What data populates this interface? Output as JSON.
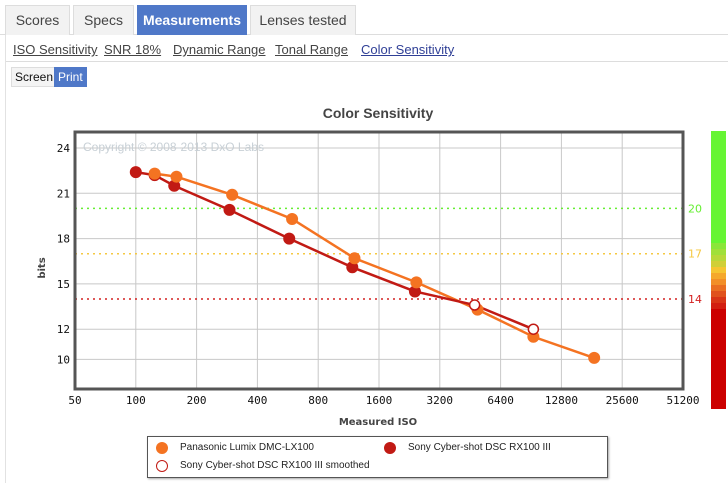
{
  "tabs": [
    {
      "label": "Scores",
      "active": false
    },
    {
      "label": "Specs",
      "active": false
    },
    {
      "label": "Measurements",
      "active": true
    },
    {
      "label": "Lenses tested",
      "active": false
    }
  ],
  "subnav": [
    {
      "label": "ISO Sensitivity",
      "active": false
    },
    {
      "label": "SNR 18%",
      "active": false
    },
    {
      "label": "Dynamic Range",
      "active": false
    },
    {
      "label": "Tonal Range",
      "active": false
    },
    {
      "label": "Color Sensitivity",
      "active": true
    }
  ],
  "view_toggle": {
    "screen": "Screen",
    "print": "Print",
    "selected": "Print"
  },
  "colors": {
    "panasonic": "#f47322",
    "sony": "#c11a14",
    "tab_active": "#4f78c8",
    "threshold_20": "#66ee33",
    "threshold_17": "#f5c842",
    "threshold_14": "#d42020"
  },
  "chart_data": {
    "type": "line",
    "title": "Color Sensitivity",
    "watermark": "Copyright © 2008-2013 DxO Labs",
    "xlabel": "Measured ISO",
    "ylabel": "bits",
    "x_scale": "log2",
    "x_ticks": [
      50,
      100,
      200,
      400,
      800,
      1600,
      3200,
      6400,
      12800,
      25600,
      51200
    ],
    "xlim": [
      50,
      51200
    ],
    "y_ticks": [
      24,
      21,
      18,
      15,
      12,
      10
    ],
    "ylim": [
      8,
      24.7
    ],
    "grid": true,
    "thresholds": [
      {
        "value": 20,
        "label": "20",
        "color": "#66ee33"
      },
      {
        "value": 17,
        "label": "17",
        "color": "#f5c842"
      },
      {
        "value": 14,
        "label": "14",
        "color": "#d42020"
      }
    ],
    "series": [
      {
        "name": "Panasonic Lumix DMC-LX100",
        "color": "#f47322",
        "marker": "filled",
        "x": [
          124,
          159,
          300,
          594,
          1210,
          2450,
          4920,
          9300,
          18600
        ],
        "y": [
          22.3,
          22.1,
          20.9,
          19.3,
          16.7,
          15.1,
          13.3,
          11.5,
          10.1
        ]
      },
      {
        "name": "Sony Cyber-shot DSC RX100 III",
        "color": "#c11a14",
        "marker": "filled",
        "x": [
          100,
          124,
          155,
          291,
          575,
          1180,
          2410
        ],
        "y": [
          22.4,
          22.2,
          21.5,
          19.9,
          18.0,
          16.1,
          14.5
        ]
      },
      {
        "name": "Sony Cyber-shot DSC RX100 III smoothed",
        "color": "#c11a14",
        "marker": "hollow",
        "x": [
          4760,
          9300
        ],
        "y": [
          13.6,
          12.0
        ]
      }
    ],
    "legend_position": "bottom"
  },
  "legend": [
    {
      "label": "Panasonic Lumix DMC-LX100"
    },
    {
      "label": "Sony Cyber-shot DSC RX100 III"
    },
    {
      "label": "Sony Cyber-shot DSC RX100 III smoothed"
    }
  ],
  "color_scale": {
    "stops": [
      "#66f533",
      "#66f533",
      "#8ae63a",
      "#a0e03a",
      "#b8d83a",
      "#d0cf38",
      "#f5c532",
      "#f5a82c",
      "#f28f28",
      "#ea6f22",
      "#e0521c",
      "#d83516",
      "#d21e10",
      "#cc0000",
      "#cc0000"
    ]
  }
}
